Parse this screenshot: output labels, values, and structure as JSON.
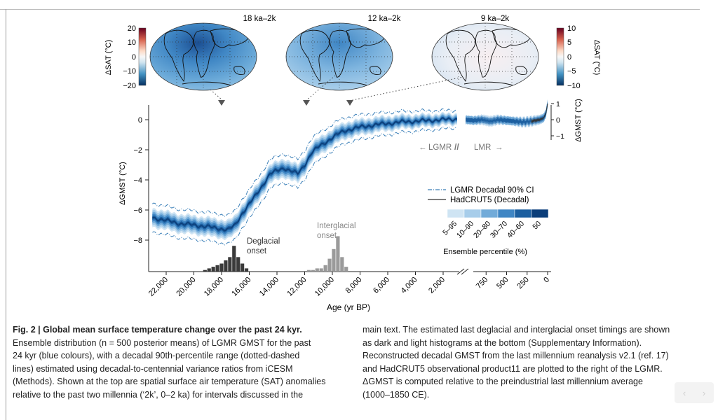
{
  "maps": [
    {
      "label": "18 ka–2k"
    },
    {
      "label": "12 ka–2k"
    },
    {
      "label": "9 ka–2k"
    }
  ],
  "colorbar_left": {
    "label": "ΔSAT (°C)",
    "ticks": [
      "20",
      "10",
      "0",
      "−10",
      "−20"
    ]
  },
  "colorbar_right": {
    "label": "ΔSAT (°C)",
    "ticks": [
      "10",
      "5",
      "0",
      "−5",
      "−10"
    ]
  },
  "colors": {
    "deep_blue": "#0b3e7a",
    "mid_blue": "#3f86c4",
    "light_blue": "#8fc1e4",
    "pale_blue": "#cfe4f3",
    "red": "#b2182b"
  },
  "chart_data": {
    "type": "area",
    "xlabel": "Age (yr BP)",
    "ylabel": "ΔGMST (°C)",
    "ylabel_right": "ΔGMST (°C)",
    "lgmr_x_ticks": [
      "22,000",
      "20,000",
      "18,000",
      "16,000",
      "14,000",
      "12,000",
      "10,000",
      "8,000",
      "6,000",
      "4,000",
      "2,000"
    ],
    "lmr_x_ticks": [
      "750",
      "500",
      "250",
      "0"
    ],
    "y_ticks": [
      "0",
      "−2",
      "−4",
      "−6",
      "−8"
    ],
    "y_ticks_right": [
      "1",
      "0",
      "−1"
    ],
    "ylim": [
      -10.2,
      1.3
    ],
    "lgmr_median": {
      "x": [
        23000,
        22000,
        21000,
        20000,
        19000,
        18500,
        18000,
        17500,
        17000,
        16500,
        16000,
        15500,
        15000,
        14500,
        14000,
        13500,
        13000,
        12500,
        12000,
        11500,
        11000,
        10500,
        10000,
        9500,
        9000,
        8500,
        8000,
        7000,
        6000,
        5000,
        4000,
        3000,
        2000,
        1000
      ],
      "y": [
        -6.5,
        -6.7,
        -6.9,
        -7.0,
        -7.1,
        -7.2,
        -7.25,
        -7.3,
        -7.0,
        -6.2,
        -5.6,
        -5.0,
        -4.3,
        -3.6,
        -3.4,
        -3.2,
        -3.4,
        -3.6,
        -3.0,
        -2.2,
        -1.8,
        -1.5,
        -1.2,
        -0.9,
        -0.7,
        -0.6,
        -0.5,
        -0.35,
        -0.25,
        -0.15,
        -0.1,
        -0.05,
        0.0,
        0.05
      ]
    },
    "lmr_series": {
      "x": [
        1000,
        900,
        800,
        700,
        600,
        500,
        400,
        300,
        200,
        150,
        100,
        50,
        20,
        0
      ],
      "y": [
        0.0,
        -0.05,
        0.0,
        -0.1,
        0.0,
        -0.05,
        -0.1,
        -0.15,
        -0.1,
        -0.05,
        0.0,
        0.1,
        0.4,
        1.0
      ]
    },
    "legend": {
      "ci_label": "LGMR Decadal 90% CI",
      "hadcrut_label": "HadCRUT5 (Decadal)"
    },
    "percentiles": {
      "labels": [
        "5–95",
        "10–90",
        "20–80",
        "30–70",
        "40–60",
        "50"
      ],
      "colors": [
        "#cfe4f3",
        "#a7cdea",
        "#72abd9",
        "#3f86c4",
        "#1c5fa0",
        "#0b3e7a"
      ],
      "title": "Ensemble percentile (%)"
    },
    "annotations": {
      "lgmr_lmr": "LGMR",
      "lmr": "LMR",
      "deglacial": [
        "Deglacial",
        "onset"
      ],
      "interglacial": [
        "Interglacial",
        "onset"
      ]
    },
    "deglacial_hist": {
      "x": [
        19200,
        18900,
        18600,
        18300,
        18000,
        17700,
        17400,
        17100,
        16800,
        16500,
        16200
      ],
      "counts": [
        1,
        2,
        3,
        4,
        5,
        7,
        9,
        16,
        9,
        5,
        2
      ]
    },
    "interglacial_hist": {
      "x": [
        11700,
        11400,
        11100,
        10800,
        10500,
        10200,
        9900,
        9600,
        9300,
        9000
      ],
      "counts": [
        1,
        1,
        2,
        2,
        4,
        8,
        14,
        22,
        9,
        3
      ]
    }
  },
  "caption": {
    "fig_label": "Fig. 2 | ",
    "title": "Global mean surface temperature change over the past 24  kyr.",
    "left_lines": [
      "Ensemble distribution (n = 500 posterior means) of LGMR GMST for the past",
      "24 kyr (blue colours), with a decadal 90th-percentile range (dotted-dashed",
      "lines) estimated using decadal-to-centennial variance ratios from iCESM",
      "(Methods). Shown at the top are spatial surface air temperature (SAT) anomalies",
      "relative to the past two millennia (‘2k’, 0–2 ka) for intervals discussed in the"
    ],
    "right_lines": [
      "main text. The estimated last deglacial and interglacial onset timings are shown",
      "as dark and light histograms at the bottom (Supplementary Information).",
      "Reconstructed decadal GMST from the last millennium reanalysis v2.1 (ref. 17)",
      "and HadCRUT5 observational product11 are plotted to the right of the LGMR.",
      "ΔGMST is computed relative to the preindustrial last millennium average",
      "(1000–1850 CE)."
    ]
  },
  "pager": {
    "prev": "‹",
    "next": "›"
  }
}
